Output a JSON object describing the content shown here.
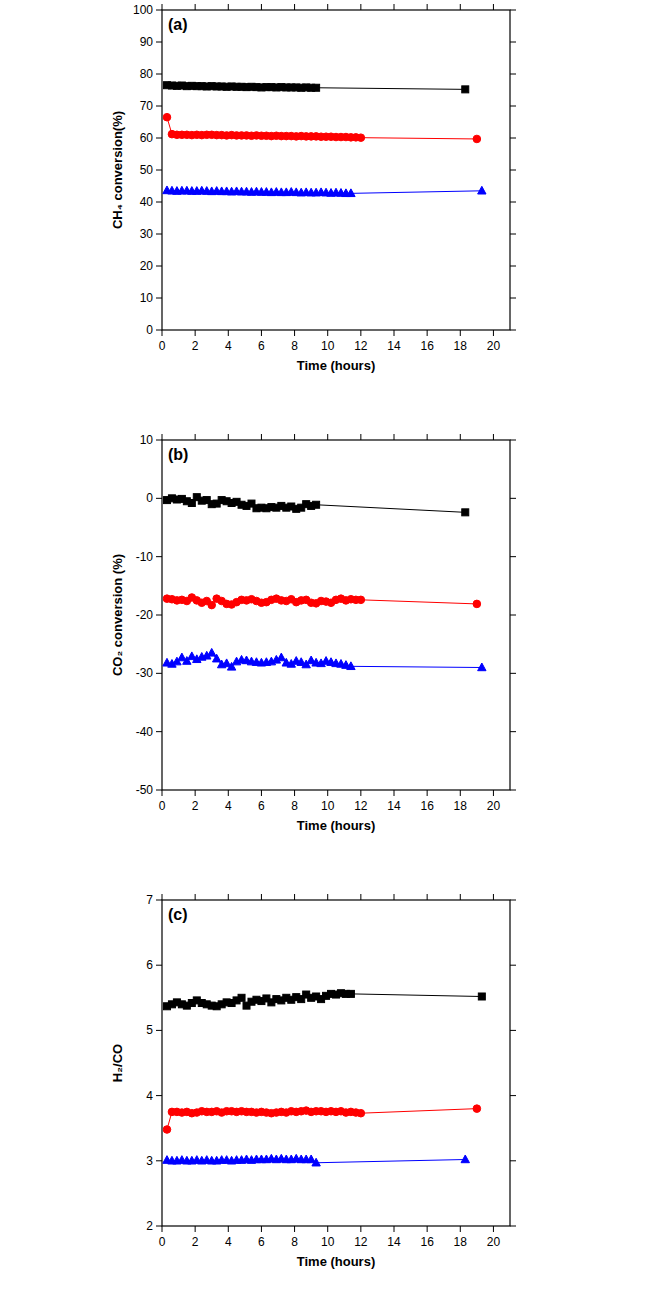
{
  "chart_data": [
    {
      "type": "line",
      "title": "(a)",
      "x_label": "Time (hours)",
      "y_label": "CH₄ conversion(%)",
      "xlim": [
        0,
        21
      ],
      "xticks": [
        0,
        2,
        4,
        6,
        8,
        10,
        12,
        14,
        16,
        18,
        20
      ],
      "ylim": [
        0,
        100
      ],
      "yticks": [
        0,
        10,
        20,
        30,
        40,
        50,
        60,
        70,
        80,
        90,
        100
      ],
      "grid": false,
      "series": [
        {
          "color": "#000000",
          "marker": "square",
          "line_style": "solid",
          "x": [
            0.3,
            0.6,
            0.9,
            1.2,
            1.5,
            1.8,
            2.1,
            2.4,
            2.7,
            3.0,
            3.3,
            3.6,
            3.9,
            4.2,
            4.5,
            4.8,
            5.1,
            5.4,
            5.7,
            6.0,
            6.3,
            6.6,
            6.9,
            7.2,
            7.5,
            7.8,
            8.1,
            8.4,
            8.7,
            9.0,
            9.3,
            18.3
          ],
          "values": [
            76.5,
            76.4,
            76.3,
            76.4,
            76.2,
            76.3,
            76.2,
            76.2,
            76.1,
            76.2,
            76.1,
            76.1,
            76.0,
            76.1,
            76.0,
            76.0,
            75.9,
            76.0,
            75.9,
            75.8,
            75.9,
            75.9,
            75.8,
            75.9,
            75.8,
            75.8,
            75.8,
            75.7,
            75.8,
            75.7,
            75.7,
            75.2
          ]
        },
        {
          "color": "#ff0000",
          "marker": "circle",
          "line_style": "solid",
          "x": [
            0.3,
            0.6,
            0.9,
            1.2,
            1.5,
            1.8,
            2.1,
            2.4,
            2.7,
            3.0,
            3.3,
            3.6,
            3.9,
            4.2,
            4.5,
            4.8,
            5.1,
            5.4,
            5.7,
            6.0,
            6.3,
            6.6,
            6.9,
            7.2,
            7.5,
            7.8,
            8.1,
            8.4,
            8.7,
            9.0,
            9.3,
            9.6,
            9.9,
            10.2,
            10.5,
            10.8,
            11.1,
            11.4,
            11.7,
            12.0,
            19.0
          ],
          "values": [
            66.5,
            61.2,
            61.0,
            61.0,
            61.0,
            60.9,
            61.0,
            60.9,
            61.0,
            61.0,
            60.9,
            60.9,
            60.8,
            60.9,
            60.8,
            60.8,
            60.8,
            60.7,
            60.8,
            60.7,
            60.7,
            60.6,
            60.7,
            60.6,
            60.6,
            60.6,
            60.5,
            60.6,
            60.5,
            60.5,
            60.5,
            60.4,
            60.4,
            60.4,
            60.3,
            60.3,
            60.3,
            60.2,
            60.2,
            60.1,
            59.7
          ]
        },
        {
          "color": "#0000ff",
          "marker": "triangle",
          "line_style": "solid",
          "x": [
            0.3,
            0.6,
            0.9,
            1.2,
            1.5,
            1.8,
            2.1,
            2.4,
            2.7,
            3.0,
            3.3,
            3.6,
            3.9,
            4.2,
            4.5,
            4.8,
            5.1,
            5.4,
            5.7,
            6.0,
            6.3,
            6.6,
            6.9,
            7.2,
            7.5,
            7.8,
            8.1,
            8.4,
            8.7,
            9.0,
            9.3,
            9.6,
            9.9,
            10.2,
            10.5,
            10.8,
            11.1,
            11.4,
            19.3
          ],
          "values": [
            43.6,
            43.5,
            43.4,
            43.5,
            43.5,
            43.4,
            43.4,
            43.5,
            43.4,
            43.3,
            43.4,
            43.3,
            43.3,
            43.2,
            43.3,
            43.2,
            43.2,
            43.1,
            43.2,
            43.1,
            43.1,
            43.0,
            43.1,
            43.0,
            43.0,
            43.1,
            43.0,
            42.9,
            43.0,
            42.9,
            42.9,
            43.0,
            42.9,
            42.8,
            42.9,
            42.8,
            42.7,
            42.7,
            43.5
          ]
        }
      ]
    },
    {
      "type": "line",
      "title": "(b)",
      "x_label": "Time (hours)",
      "y_label": "CO₂ conversion (%)",
      "xlim": [
        0,
        21
      ],
      "xticks": [
        0,
        2,
        4,
        6,
        8,
        10,
        12,
        14,
        16,
        18,
        20
      ],
      "ylim": [
        -50,
        10
      ],
      "yticks": [
        -50,
        -40,
        -30,
        -20,
        -10,
        0,
        10
      ],
      "grid": false,
      "series": [
        {
          "color": "#000000",
          "marker": "square",
          "line_style": "solid",
          "x": [
            0.3,
            0.6,
            0.9,
            1.2,
            1.5,
            1.8,
            2.1,
            2.4,
            2.7,
            3.0,
            3.3,
            3.6,
            3.9,
            4.2,
            4.5,
            4.8,
            5.1,
            5.4,
            5.7,
            6.0,
            6.3,
            6.6,
            6.9,
            7.2,
            7.5,
            7.8,
            8.1,
            8.4,
            8.7,
            9.0,
            9.3,
            18.3
          ],
          "values": [
            -0.3,
            0,
            -0.2,
            -0.1,
            -0.5,
            -0.8,
            0.2,
            -0.4,
            -0.3,
            -1.0,
            -0.9,
            -0.3,
            -0.5,
            -0.8,
            -0.6,
            -1.1,
            -1.3,
            -0.9,
            -1.7,
            -1.6,
            -1.7,
            -1.5,
            -1.6,
            -1.3,
            -1.6,
            -1.4,
            -1.8,
            -1.6,
            -1.0,
            -1.3,
            -1.1,
            -2.4
          ]
        },
        {
          "color": "#ff0000",
          "marker": "circle",
          "line_style": "solid",
          "x": [
            0.3,
            0.6,
            0.9,
            1.2,
            1.5,
            1.8,
            2.1,
            2.4,
            2.7,
            3.0,
            3.3,
            3.6,
            3.9,
            4.2,
            4.5,
            4.8,
            5.1,
            5.4,
            5.7,
            6.0,
            6.3,
            6.6,
            6.9,
            7.2,
            7.5,
            7.8,
            8.1,
            8.4,
            8.7,
            9.0,
            9.3,
            9.6,
            9.9,
            10.2,
            10.5,
            10.8,
            11.1,
            11.4,
            11.7,
            12.0,
            19.0
          ],
          "values": [
            -17.2,
            -17.3,
            -17.5,
            -17.4,
            -17.6,
            -17.0,
            -17.5,
            -17.9,
            -17.6,
            -18.3,
            -17.2,
            -17.6,
            -18.1,
            -18.2,
            -17.8,
            -17.4,
            -17.5,
            -17.3,
            -17.6,
            -17.9,
            -17.8,
            -17.4,
            -17.2,
            -17.5,
            -17.6,
            -17.3,
            -17.8,
            -17.5,
            -17.4,
            -17.9,
            -18.0,
            -17.6,
            -17.7,
            -17.9,
            -17.4,
            -17.2,
            -17.5,
            -17.3,
            -17.4,
            -17.4,
            -18.1
          ]
        },
        {
          "color": "#0000ff",
          "marker": "triangle",
          "line_style": "solid",
          "x": [
            0.3,
            0.6,
            0.9,
            1.2,
            1.5,
            1.8,
            2.1,
            2.4,
            2.7,
            3.0,
            3.3,
            3.6,
            3.9,
            4.2,
            4.5,
            4.8,
            5.1,
            5.4,
            5.7,
            6.0,
            6.3,
            6.6,
            6.9,
            7.2,
            7.5,
            7.8,
            8.1,
            8.4,
            8.7,
            9.0,
            9.3,
            9.6,
            9.9,
            10.2,
            10.5,
            10.8,
            11.1,
            11.4,
            19.3
          ],
          "values": [
            -28.2,
            -28.4,
            -28.0,
            -27.3,
            -27.9,
            -27.1,
            -27.6,
            -27.2,
            -27.0,
            -26.5,
            -27.5,
            -28.5,
            -28.3,
            -28.9,
            -28.0,
            -27.7,
            -27.8,
            -28.0,
            -28.1,
            -28.2,
            -28.1,
            -28.0,
            -27.7,
            -27.3,
            -28.2,
            -28.4,
            -27.9,
            -28.1,
            -28.5,
            -27.8,
            -28.2,
            -28.3,
            -27.9,
            -28.1,
            -28.3,
            -28.4,
            -28.6,
            -28.8,
            -29.0
          ]
        }
      ]
    },
    {
      "type": "line",
      "title": "(c)",
      "x_label": "Time (hours)",
      "y_label": "H₂/CO",
      "xlim": [
        0,
        21
      ],
      "xticks": [
        0,
        2,
        4,
        6,
        8,
        10,
        12,
        14,
        16,
        18,
        20
      ],
      "ylim": [
        2,
        7
      ],
      "yticks": [
        2,
        3,
        4,
        5,
        6,
        7
      ],
      "grid": false,
      "series": [
        {
          "color": "#000000",
          "marker": "square",
          "line_style": "solid",
          "x": [
            0.3,
            0.6,
            0.9,
            1.2,
            1.5,
            1.8,
            2.1,
            2.4,
            2.7,
            3.0,
            3.3,
            3.6,
            3.9,
            4.2,
            4.5,
            4.8,
            5.1,
            5.4,
            5.7,
            6.0,
            6.3,
            6.6,
            6.9,
            7.2,
            7.5,
            7.8,
            8.1,
            8.4,
            8.7,
            9.0,
            9.3,
            9.6,
            9.9,
            10.2,
            10.5,
            10.8,
            11.1,
            11.4,
            19.3
          ],
          "values": [
            5.37,
            5.4,
            5.43,
            5.4,
            5.38,
            5.42,
            5.46,
            5.42,
            5.4,
            5.38,
            5.37,
            5.4,
            5.43,
            5.42,
            5.46,
            5.5,
            5.38,
            5.44,
            5.47,
            5.45,
            5.49,
            5.43,
            5.48,
            5.46,
            5.5,
            5.47,
            5.51,
            5.48,
            5.55,
            5.5,
            5.52,
            5.48,
            5.53,
            5.56,
            5.55,
            5.57,
            5.56,
            5.56,
            5.52
          ]
        },
        {
          "color": "#ff0000",
          "marker": "circle",
          "line_style": "solid",
          "x": [
            0.3,
            0.6,
            0.9,
            1.2,
            1.5,
            1.8,
            2.1,
            2.4,
            2.7,
            3.0,
            3.3,
            3.6,
            3.9,
            4.2,
            4.5,
            4.8,
            5.1,
            5.4,
            5.7,
            6.0,
            6.3,
            6.6,
            6.9,
            7.2,
            7.5,
            7.8,
            8.1,
            8.4,
            8.7,
            9.0,
            9.3,
            9.6,
            9.9,
            10.2,
            10.5,
            10.8,
            11.1,
            11.4,
            11.7,
            12.0,
            19.0
          ],
          "values": [
            3.48,
            3.75,
            3.75,
            3.74,
            3.75,
            3.73,
            3.74,
            3.76,
            3.75,
            3.75,
            3.76,
            3.74,
            3.76,
            3.76,
            3.75,
            3.76,
            3.75,
            3.75,
            3.74,
            3.75,
            3.74,
            3.73,
            3.74,
            3.75,
            3.74,
            3.76,
            3.75,
            3.76,
            3.77,
            3.75,
            3.76,
            3.76,
            3.75,
            3.76,
            3.75,
            3.76,
            3.74,
            3.75,
            3.74,
            3.73,
            3.8
          ]
        },
        {
          "color": "#0000ff",
          "marker": "triangle",
          "line_style": "solid",
          "x": [
            0.3,
            0.6,
            0.9,
            1.2,
            1.5,
            1.8,
            2.1,
            2.4,
            2.7,
            3.0,
            3.3,
            3.6,
            3.9,
            4.2,
            4.5,
            4.8,
            5.1,
            5.4,
            5.7,
            6.0,
            6.3,
            6.6,
            6.9,
            7.2,
            7.5,
            7.8,
            8.1,
            8.4,
            8.7,
            9.0,
            9.3,
            18.3
          ],
          "values": [
            3.01,
            3.0,
            3.0,
            3.01,
            3.0,
            3.0,
            3.01,
            3.0,
            3.01,
            3.0,
            3.0,
            3.01,
            3.01,
            3.0,
            3.01,
            3.01,
            3.02,
            3.01,
            3.02,
            3.02,
            3.02,
            3.03,
            3.02,
            3.03,
            3.02,
            3.02,
            3.03,
            3.02,
            3.02,
            3.02,
            2.97,
            3.02
          ]
        }
      ]
    }
  ]
}
